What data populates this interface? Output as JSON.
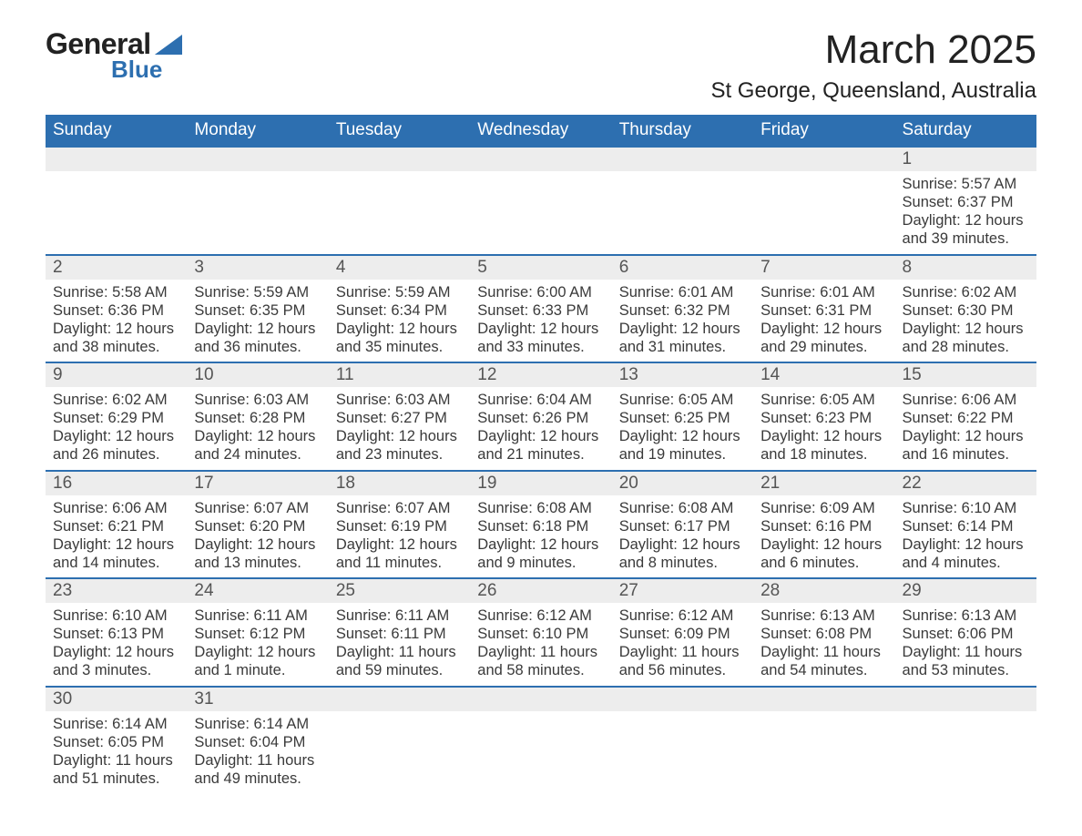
{
  "logo": {
    "line1": "General",
    "line2": "Blue"
  },
  "title": "March 2025",
  "location": "St George, Queensland, Australia",
  "colors": {
    "header_bg": "#2d6fb0",
    "header_text": "#ffffff",
    "daynum_bg": "#ededed",
    "border": "#2d6fb0",
    "logo_accent": "#2d6fb0"
  },
  "day_headers": [
    "Sunday",
    "Monday",
    "Tuesday",
    "Wednesday",
    "Thursday",
    "Friday",
    "Saturday"
  ],
  "weeks": [
    [
      {
        "n": "",
        "d": ""
      },
      {
        "n": "",
        "d": ""
      },
      {
        "n": "",
        "d": ""
      },
      {
        "n": "",
        "d": ""
      },
      {
        "n": "",
        "d": ""
      },
      {
        "n": "",
        "d": ""
      },
      {
        "n": "1",
        "d": "Sunrise: 5:57 AM\nSunset: 6:37 PM\nDaylight: 12 hours and 39 minutes."
      }
    ],
    [
      {
        "n": "2",
        "d": "Sunrise: 5:58 AM\nSunset: 6:36 PM\nDaylight: 12 hours and 38 minutes."
      },
      {
        "n": "3",
        "d": "Sunrise: 5:59 AM\nSunset: 6:35 PM\nDaylight: 12 hours and 36 minutes."
      },
      {
        "n": "4",
        "d": "Sunrise: 5:59 AM\nSunset: 6:34 PM\nDaylight: 12 hours and 35 minutes."
      },
      {
        "n": "5",
        "d": "Sunrise: 6:00 AM\nSunset: 6:33 PM\nDaylight: 12 hours and 33 minutes."
      },
      {
        "n": "6",
        "d": "Sunrise: 6:01 AM\nSunset: 6:32 PM\nDaylight: 12 hours and 31 minutes."
      },
      {
        "n": "7",
        "d": "Sunrise: 6:01 AM\nSunset: 6:31 PM\nDaylight: 12 hours and 29 minutes."
      },
      {
        "n": "8",
        "d": "Sunrise: 6:02 AM\nSunset: 6:30 PM\nDaylight: 12 hours and 28 minutes."
      }
    ],
    [
      {
        "n": "9",
        "d": "Sunrise: 6:02 AM\nSunset: 6:29 PM\nDaylight: 12 hours and 26 minutes."
      },
      {
        "n": "10",
        "d": "Sunrise: 6:03 AM\nSunset: 6:28 PM\nDaylight: 12 hours and 24 minutes."
      },
      {
        "n": "11",
        "d": "Sunrise: 6:03 AM\nSunset: 6:27 PM\nDaylight: 12 hours and 23 minutes."
      },
      {
        "n": "12",
        "d": "Sunrise: 6:04 AM\nSunset: 6:26 PM\nDaylight: 12 hours and 21 minutes."
      },
      {
        "n": "13",
        "d": "Sunrise: 6:05 AM\nSunset: 6:25 PM\nDaylight: 12 hours and 19 minutes."
      },
      {
        "n": "14",
        "d": "Sunrise: 6:05 AM\nSunset: 6:23 PM\nDaylight: 12 hours and 18 minutes."
      },
      {
        "n": "15",
        "d": "Sunrise: 6:06 AM\nSunset: 6:22 PM\nDaylight: 12 hours and 16 minutes."
      }
    ],
    [
      {
        "n": "16",
        "d": "Sunrise: 6:06 AM\nSunset: 6:21 PM\nDaylight: 12 hours and 14 minutes."
      },
      {
        "n": "17",
        "d": "Sunrise: 6:07 AM\nSunset: 6:20 PM\nDaylight: 12 hours and 13 minutes."
      },
      {
        "n": "18",
        "d": "Sunrise: 6:07 AM\nSunset: 6:19 PM\nDaylight: 12 hours and 11 minutes."
      },
      {
        "n": "19",
        "d": "Sunrise: 6:08 AM\nSunset: 6:18 PM\nDaylight: 12 hours and 9 minutes."
      },
      {
        "n": "20",
        "d": "Sunrise: 6:08 AM\nSunset: 6:17 PM\nDaylight: 12 hours and 8 minutes."
      },
      {
        "n": "21",
        "d": "Sunrise: 6:09 AM\nSunset: 6:16 PM\nDaylight: 12 hours and 6 minutes."
      },
      {
        "n": "22",
        "d": "Sunrise: 6:10 AM\nSunset: 6:14 PM\nDaylight: 12 hours and 4 minutes."
      }
    ],
    [
      {
        "n": "23",
        "d": "Sunrise: 6:10 AM\nSunset: 6:13 PM\nDaylight: 12 hours and 3 minutes."
      },
      {
        "n": "24",
        "d": "Sunrise: 6:11 AM\nSunset: 6:12 PM\nDaylight: 12 hours and 1 minute."
      },
      {
        "n": "25",
        "d": "Sunrise: 6:11 AM\nSunset: 6:11 PM\nDaylight: 11 hours and 59 minutes."
      },
      {
        "n": "26",
        "d": "Sunrise: 6:12 AM\nSunset: 6:10 PM\nDaylight: 11 hours and 58 minutes."
      },
      {
        "n": "27",
        "d": "Sunrise: 6:12 AM\nSunset: 6:09 PM\nDaylight: 11 hours and 56 minutes."
      },
      {
        "n": "28",
        "d": "Sunrise: 6:13 AM\nSunset: 6:08 PM\nDaylight: 11 hours and 54 minutes."
      },
      {
        "n": "29",
        "d": "Sunrise: 6:13 AM\nSunset: 6:06 PM\nDaylight: 11 hours and 53 minutes."
      }
    ],
    [
      {
        "n": "30",
        "d": "Sunrise: 6:14 AM\nSunset: 6:05 PM\nDaylight: 11 hours and 51 minutes."
      },
      {
        "n": "31",
        "d": "Sunrise: 6:14 AM\nSunset: 6:04 PM\nDaylight: 11 hours and 49 minutes."
      },
      {
        "n": "",
        "d": ""
      },
      {
        "n": "",
        "d": ""
      },
      {
        "n": "",
        "d": ""
      },
      {
        "n": "",
        "d": ""
      },
      {
        "n": "",
        "d": ""
      }
    ]
  ]
}
